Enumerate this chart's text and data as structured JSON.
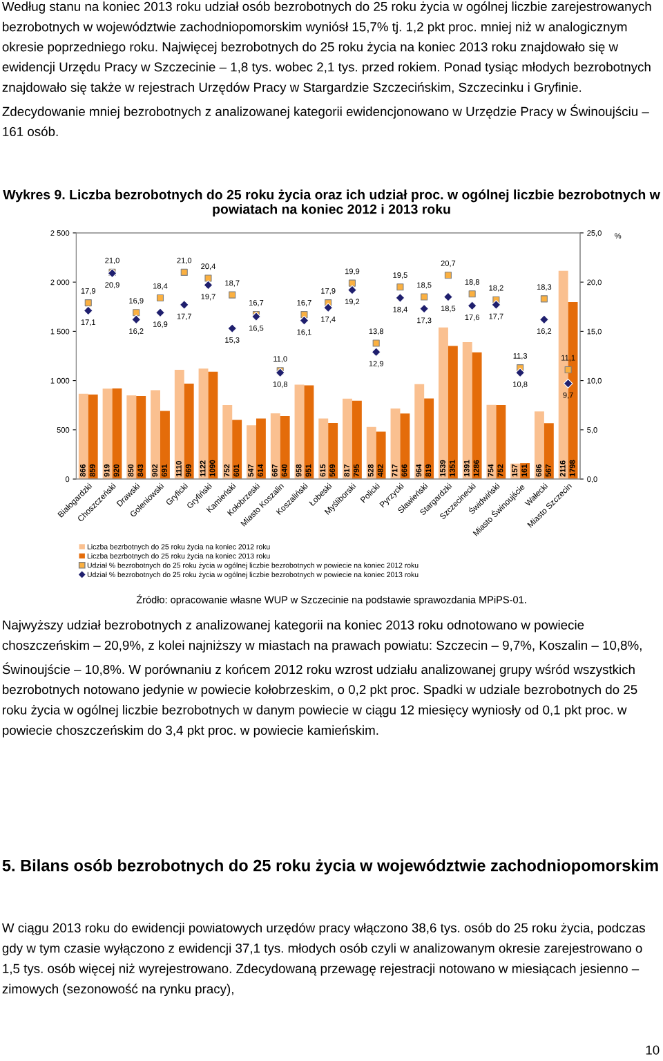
{
  "chart_data": {
    "type": "bar",
    "title": "Wykres 9. Liczba bezrobotnych do 25 roku życia oraz ich udział proc. w ogólnej liczbie bezrobotnych w powiatach na koniec 2012 i 2013 roku",
    "categories": [
      "Białogardzki",
      "Choszczeński",
      "Drawski",
      "Goleniowski",
      "Gryficki",
      "Gryfiński",
      "Kamieński",
      "Kołobrzeski",
      "Miasto Koszalin",
      "Koszaliński",
      "Łobeski",
      "Myśliborski",
      "Policki",
      "Pyrzycki",
      "Sławieński",
      "Stargardzki",
      "Szczecinecki",
      "Świdwiński",
      "Miasto Świnoujście",
      "Wałecki",
      "Miasto Szczecin"
    ],
    "series": [
      {
        "name": "Liczba bezrbotnych do 25 roku życia na koniec 2012 roku",
        "color": "#fac090",
        "values": [
          866,
          919,
          850,
          902,
          1110,
          1122,
          752,
          547,
          667,
          958,
          615,
          817,
          528,
          717,
          964,
          1539,
          1391,
          754,
          157,
          686,
          2116
        ]
      },
      {
        "name": "Liczba bezrbotnych do 25 roku życia na koniec 2013 roku",
        "color": "#e46c0a",
        "values": [
          859,
          920,
          843,
          691,
          969,
          1090,
          601,
          614,
          640,
          951,
          569,
          795,
          482,
          666,
          819,
          1351,
          1286,
          752,
          161,
          567,
          1798
        ]
      },
      {
        "name": "Udział % bezrobotnych do 25 roku życia w ogólnej liczbie bezrobotnych w powiecie na koniec 2012 roku",
        "type": "scatter",
        "axis": "y2",
        "marker": "square",
        "color": "#fbb040",
        "values": [
          17.9,
          21.0,
          16.9,
          18.4,
          21.0,
          20.4,
          18.7,
          16.7,
          11.0,
          16.7,
          17.9,
          19.9,
          13.8,
          19.5,
          18.5,
          20.7,
          18.8,
          18.2,
          11.3,
          18.3,
          11.1
        ],
        "value_labels": [
          "17,9",
          "21,0",
          "16,9",
          "18,4",
          "21,0",
          "20,4",
          "18,7",
          "16,7",
          "11,0",
          "16,7",
          "17,9",
          "19,9",
          "13,8",
          "19,5",
          "18,5",
          "20,7",
          "18,8",
          "18,2",
          "11,3",
          "18,3",
          "11,1"
        ]
      },
      {
        "name": "Udział % bezrobotnych do 25 roku życia w ogólnej liczbie bezrobotnych w powiecie na koniec 2013 roku",
        "type": "scatter",
        "axis": "y2",
        "marker": "diamond",
        "color": "#1f1f6e",
        "values": [
          17.1,
          20.9,
          16.2,
          16.9,
          17.7,
          19.7,
          15.3,
          16.5,
          10.8,
          16.1,
          17.4,
          19.2,
          12.9,
          18.4,
          17.3,
          18.5,
          17.6,
          17.7,
          10.8,
          16.2,
          9.7
        ],
        "value_labels": [
          "17,1",
          "20,9",
          "16,2",
          "16,9",
          "17,7",
          "19,7",
          "15,3",
          "16,5",
          "10,8",
          "16,1",
          "17,4",
          "19,2",
          "12,9",
          "18,4",
          "17,3",
          "18,5",
          "17,6",
          "17,7",
          "10,8",
          "16,2",
          "9,7"
        ]
      }
    ],
    "ylim": [
      0,
      2500
    ],
    "yticks": [
      {
        "value": 0,
        "label": "0"
      },
      {
        "value": 500,
        "label": "500"
      },
      {
        "value": 1000,
        "label": "1 000"
      },
      {
        "value": 1500,
        "label": "1 500"
      },
      {
        "value": 2000,
        "label": "2 000"
      },
      {
        "value": 2500,
        "label": "2 500"
      }
    ],
    "y2lim": [
      0,
      25
    ],
    "y2ticks": [
      {
        "value": 0,
        "label": "0,0"
      },
      {
        "value": 5,
        "label": "5,0"
      },
      {
        "value": 10,
        "label": "10,0"
      },
      {
        "value": 15,
        "label": "15,0"
      },
      {
        "value": 20,
        "label": "20,0"
      },
      {
        "value": 25,
        "label": "25,0"
      }
    ],
    "y2label": "%",
    "data_labels": true,
    "grid": false,
    "legend": "bottom",
    "annotations": [
      "Według stanu na koniec 2013 roku udział osób bezrobotnych do 25 roku życia w ogólnej liczbie zarejestrowanych bezrobotnych w województwie zachodniopomorskim wyniósł 15,7% tj. 1,2 pkt proc. mniej niż w analogicznym okresie poprzedniego roku. Najwięcej bezrobotnych do 25 roku życia na koniec 2013 roku znajdowało się w ewidencji Urzędu Pracy w Szczecinie – 1,8 tys. wobec 2,1 tys. przed rokiem. Ponad tysiąc młodych bezrobotnych znajdowało się także w rejestrach Urzędów Pracy w Stargardzie Szczecińskim, Szczecinku i Gryfinie. Zdecydowanie mniej bezrobotnych z analizowanej kategorii ewidencjonowano w Urzędzie Pracy w Świnoujściu – 161 osób.",
      "Źródło: opracowanie własne WUP w Szczecinie na podstawie sprawozdania MPiPS-01.",
      "Najwyższy udział bezrobotnych z analizowanej kategorii na koniec 2013 roku odnotowano w powiecie choszczeńskim – 20,9%, z kolei najniższy w miastach na prawach powiatu: Szczecin – 9,7%, Koszalin – 10,8%, Świnoujście – 10,8%. W porównaniu z końcem 2012 roku wzrost udziału analizowanej grupy wśród wszystkich bezrobotnych notowano jedynie w powiecie kołobrzeskim, o 0,2 pkt proc. Spadki w udziale bezrobotnych do 25 roku życia w ogólnej liczbie bezrobotnych w danym powiecie w ciągu 12 miesięcy wyniosły od 0,1 pkt proc. w powiecie choszczeńskim do 3,4 pkt proc. w powiecie kamieńskim.",
      "5. Bilans osób bezrobotnych do 25 roku życia w województwie zachodniopomorskim",
      "W ciągu 2013 roku do ewidencji powiatowych urzędów pracy włączono 38,6 tys. osób do 25 roku życia, podczas gdy w tym czasie wyłączono z ewidencji 37,1 tys. młodych osób czyli w analizowanym okresie zarejestrowano o 1,5 tys. osób więcej niż wyrejestrowano. Zdecydowaną przewagę rejestracji notowano w miesiącach jesienno – zimowych (sezonowość na rynku pracy),",
      "10"
    ]
  }
}
